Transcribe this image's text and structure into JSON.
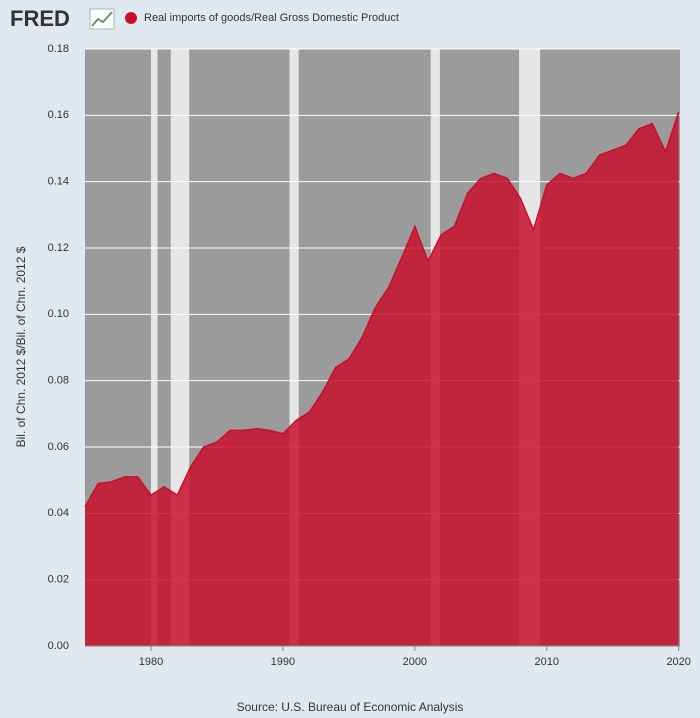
{
  "chart_data": {
    "type": "area",
    "logo": "FRED",
    "source": "Source: U.S. Bureau of Economic Analysis",
    "y_label": "Bil. of Chn. 2012 $/Bil. of Chn. 2012 $",
    "series": [
      {
        "name": "Real imports of goods/Real Gross Domestic Product",
        "color": "#c8102e",
        "values": [
          0.042,
          0.049,
          0.0495,
          0.051,
          0.051,
          0.0455,
          0.048,
          0.0455,
          0.054,
          0.06,
          0.0615,
          0.065,
          0.065,
          0.0655,
          0.065,
          0.064,
          0.068,
          0.0705,
          0.0765,
          0.084,
          0.0865,
          0.093,
          0.102,
          0.108,
          0.117,
          0.1265,
          0.116,
          0.124,
          0.1265,
          0.1365,
          0.141,
          0.1425,
          0.141,
          0.135,
          0.1255,
          0.139,
          0.1425,
          0.141,
          0.1425,
          0.148,
          0.1495,
          0.151,
          0.156,
          0.1575,
          0.149,
          0.161
        ]
      }
    ],
    "x": [
      1975,
      1976,
      1977,
      1978,
      1979,
      1980,
      1981,
      1982,
      1983,
      1984,
      1985,
      1986,
      1987,
      1988,
      1989,
      1990,
      1991,
      1992,
      1993,
      1994,
      1995,
      1996,
      1997,
      1998,
      1999,
      2000,
      2001,
      2002,
      2003,
      2004,
      2005,
      2006,
      2007,
      2008,
      2009,
      2010,
      2011,
      2012,
      2013,
      2014,
      2015,
      2016,
      2017,
      2018,
      2019,
      2020
    ],
    "recessions": [
      [
        1980.0,
        1980.5
      ],
      [
        1981.5,
        1982.9
      ],
      [
        1990.5,
        1991.2
      ],
      [
        2001.2,
        2001.9
      ],
      [
        2007.9,
        2009.5
      ]
    ],
    "xlim": [
      1975,
      2020.1
    ],
    "xticks": [
      1980,
      1990,
      2000,
      2010,
      2020
    ],
    "ylim": [
      0,
      0.18
    ],
    "yticks": [
      {
        "value": 0,
        "label": "0.00"
      },
      {
        "value": 0.02,
        "label": "0.02"
      },
      {
        "value": 0.04,
        "label": "0.04"
      },
      {
        "value": 0.06,
        "label": "0.06"
      },
      {
        "value": 0.08,
        "label": "0.08"
      },
      {
        "value": 0.1,
        "label": "0.10"
      },
      {
        "value": 0.12,
        "label": "0.12"
      },
      {
        "value": 0.14,
        "label": "0.14"
      },
      {
        "value": 0.16,
        "label": "0.16"
      },
      {
        "value": 0.18,
        "label": "0.18"
      }
    ],
    "grid": true
  }
}
